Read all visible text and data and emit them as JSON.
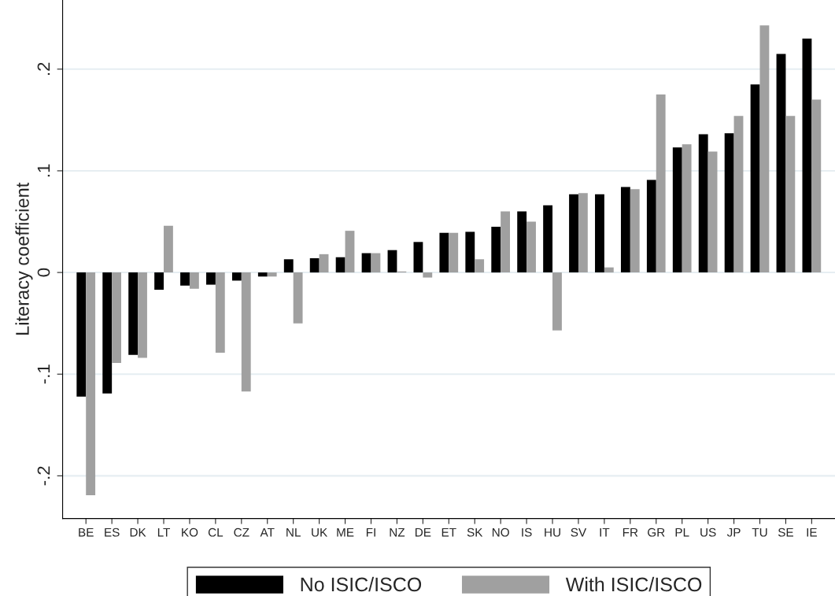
{
  "chart_data": {
    "type": "bar",
    "ylabel": "Literacy coefficient",
    "categories": [
      "BE",
      "ES",
      "DK",
      "LT",
      "KO",
      "CL",
      "CZ",
      "AT",
      "NL",
      "UK",
      "ME",
      "FI",
      "NZ",
      "DE",
      "ET",
      "SK",
      "NO",
      "IS",
      "HU",
      "SV",
      "IT",
      "FR",
      "GR",
      "PL",
      "US",
      "JP",
      "TU",
      "SE",
      "IE"
    ],
    "series": [
      {
        "name": "No ISIC/ISCO",
        "color": "#000000",
        "values": [
          -0.122,
          -0.119,
          -0.081,
          -0.017,
          -0.013,
          -0.012,
          -0.008,
          -0.004,
          0.013,
          0.014,
          0.015,
          0.019,
          0.022,
          0.03,
          0.039,
          0.04,
          0.045,
          0.06,
          0.066,
          0.077,
          0.077,
          0.084,
          0.091,
          0.123,
          0.136,
          0.137,
          0.185,
          0.215,
          0.23
        ]
      },
      {
        "name": "With ISIC/ISCO",
        "color": "#a0a0a0",
        "values": [
          -0.219,
          -0.089,
          -0.084,
          0.046,
          -0.016,
          -0.079,
          -0.117,
          -0.004,
          -0.05,
          0.018,
          0.041,
          0.019,
          0.001,
          -0.005,
          0.039,
          0.013,
          0.06,
          0.05,
          -0.057,
          0.078,
          0.005,
          0.082,
          0.175,
          0.126,
          0.119,
          0.154,
          0.243,
          0.154,
          0.17
        ]
      }
    ],
    "ylim": [
      -0.242,
      0.268
    ],
    "yticks": [
      {
        "value": -0.2,
        "label": "-.2"
      },
      {
        "value": -0.1,
        "label": "-.1"
      },
      0,
      {
        "value": 0.1,
        "label": ".1"
      },
      {
        "value": 0.2,
        "label": ".2"
      }
    ],
    "grid": "y",
    "legend": "bottom"
  }
}
